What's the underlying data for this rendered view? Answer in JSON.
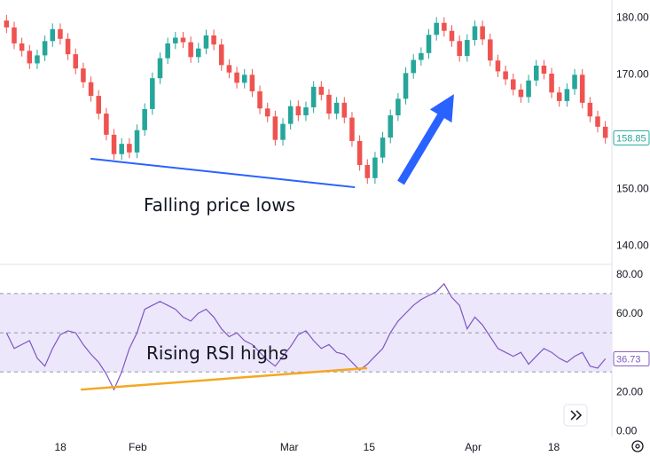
{
  "chart_data": [
    {
      "type": "candlestick",
      "panel": "price",
      "ylim": [
        137,
        183
      ],
      "yticks": [
        140,
        150,
        160,
        170,
        180
      ],
      "ytick_labels": [
        "140.00",
        "150.00",
        "",
        "170.00",
        "180.00"
      ],
      "last_price": 158.85,
      "last_price_label": "158.85",
      "colors": {
        "up": "#26a69a",
        "down": "#ef5350",
        "trendline": "#2962ff",
        "arrow": "#2962ff"
      },
      "closes": [
        178.2,
        175.4,
        174.1,
        171.9,
        173.3,
        175.8,
        177.9,
        176.2,
        173.5,
        171.0,
        168.6,
        166.2,
        163.1,
        159.4,
        156.0,
        157.8,
        156.3,
        160.2,
        163.9,
        169.3,
        172.8,
        175.4,
        176.4,
        175.6,
        173.0,
        174.5,
        176.8,
        175.2,
        171.6,
        170.3,
        168.5,
        169.9,
        167.0,
        164.0,
        162.6,
        158.5,
        161.3,
        164.4,
        162.8,
        164.2,
        167.8,
        166.4,
        163.1,
        165.0,
        162.4,
        158.3,
        154.1,
        151.8,
        155.4,
        158.9,
        162.8,
        165.7,
        170.2,
        172.5,
        173.7,
        176.9,
        179.0,
        177.6,
        175.8,
        173.2,
        176.0,
        178.4,
        176.1,
        172.4,
        170.5,
        169.1,
        167.3,
        166.0,
        168.9,
        171.5,
        170.1,
        166.8,
        165.3,
        167.4,
        169.9,
        165.0,
        162.6,
        160.8,
        158.85
      ],
      "trendline": {
        "x": [
          0.148,
          0.58
        ],
        "y": [
          155.2,
          150.2
        ]
      },
      "annotation": "Falling price lows"
    },
    {
      "type": "line",
      "panel": "rsi",
      "ylim": [
        -2,
        84
      ],
      "yticks": [
        0,
        20,
        40,
        60,
        80
      ],
      "ytick_labels": [
        "0.00",
        "20.00",
        "",
        "60.00",
        "80.00"
      ],
      "band": [
        30,
        70
      ],
      "midline": 50,
      "last_value": 36.73,
      "last_value_label": "36.73",
      "colors": {
        "line": "#7e57c2",
        "band": "#ede7fb",
        "trendline": "#f5a623"
      },
      "values": [
        50,
        42,
        44,
        46,
        37,
        33,
        42,
        49,
        51,
        50,
        44,
        39,
        35,
        29,
        21,
        30,
        42,
        50,
        62,
        64,
        66,
        64,
        62,
        58,
        56,
        60,
        62,
        58,
        52,
        48,
        50,
        46,
        44,
        40,
        36,
        33,
        38,
        43,
        49,
        51,
        46,
        42,
        44,
        40,
        39,
        35,
        31,
        34,
        38,
        42,
        50,
        56,
        60,
        64,
        67,
        69,
        71,
        75,
        68,
        64,
        52,
        58,
        54,
        48,
        42,
        40,
        38,
        40,
        34,
        38,
        42,
        40,
        37,
        35,
        38,
        40,
        33,
        32,
        36.73
      ],
      "trendline": {
        "x": [
          0.132,
          0.6
        ],
        "y": [
          21,
          32
        ]
      },
      "annotation": "Rising RSI highs"
    }
  ],
  "xaxis": {
    "labels": [
      {
        "text": "18",
        "pos": 0.093
      },
      {
        "text": "Feb",
        "pos": 0.212
      },
      {
        "text": "Mar",
        "pos": 0.445
      },
      {
        "text": "15",
        "pos": 0.568
      },
      {
        "text": "Apr",
        "pos": 0.728
      },
      {
        "text": "18",
        "pos": 0.852
      }
    ]
  },
  "icons": {
    "scroll": "double-chevron-right-icon",
    "settings": "gear-icon"
  }
}
